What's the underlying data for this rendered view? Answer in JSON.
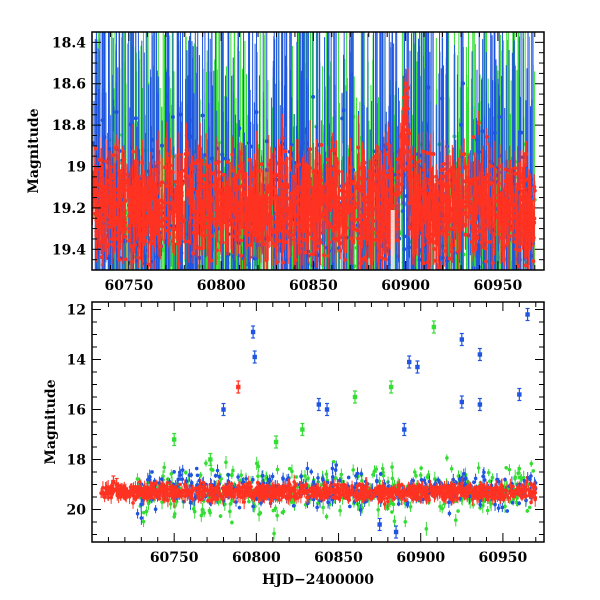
{
  "chart_data": [
    {
      "type": "scatter",
      "panel": "top",
      "title": "",
      "xlabel": "",
      "ylabel": "Magnitude",
      "xlim": [
        60730,
        60975
      ],
      "ylim": [
        19.5,
        18.35
      ],
      "y_inverted": true,
      "xticks": [
        60750,
        60800,
        60850,
        60900,
        60950
      ],
      "xtick_labels": [
        "60750",
        "60800",
        "60850",
        "60900",
        "60950"
      ],
      "yticks": [
        18.4,
        18.6,
        18.8,
        19,
        19.2,
        19.4
      ],
      "ytick_labels": [
        "18.4",
        "18.6",
        "18.8",
        "19",
        "19.2",
        "19.4"
      ],
      "grid": false,
      "series": [
        {
          "color": "#33dd33",
          "x_range": [
            60730,
            60970
          ],
          "base_mag": 19.25,
          "scatter": 0.18,
          "error_bar_span": 1.0
        },
        {
          "color": "#1f55e0",
          "x_range": [
            60730,
            60970
          ],
          "base_mag": 19.2,
          "scatter": 0.2,
          "error_bar_span": 1.2
        },
        {
          "color": "#ff3322",
          "x_range": [
            60730,
            60970
          ],
          "base_mag": 19.2,
          "scatter": 0.12,
          "error_bar_span": 0.3
        }
      ],
      "features": [
        {
          "x": 60900,
          "y_min": 18.6,
          "color": "#ff3322",
          "kind": "peak"
        },
        {
          "x": 60893,
          "y": 19.35,
          "color": "#ffffff",
          "kind": "gap"
        }
      ]
    },
    {
      "type": "scatter",
      "panel": "bottom",
      "title": "",
      "xlabel": "HJD−2400000",
      "ylabel": "Magnitude",
      "xlim": [
        60700,
        60975
      ],
      "ylim": [
        21.3,
        11.7
      ],
      "y_inverted": true,
      "xticks": [
        60750,
        60800,
        60850,
        60900,
        60950
      ],
      "xtick_labels": [
        "60750",
        "60800",
        "60850",
        "60900",
        "60950"
      ],
      "yticks": [
        12,
        14,
        16,
        18,
        20
      ],
      "ytick_labels": [
        "12",
        "14",
        "16",
        "18",
        "20"
      ],
      "grid": false,
      "series": [
        {
          "color": "#33dd33",
          "x_range": [
            60725,
            60970
          ],
          "base_mag": 19.3,
          "scatter": 0.45
        },
        {
          "color": "#1f55e0",
          "x_range": [
            60725,
            60970
          ],
          "base_mag": 19.2,
          "scatter": 0.35
        },
        {
          "color": "#ff3322",
          "x_range": [
            60705,
            60970
          ],
          "base_mag": 19.3,
          "scatter": 0.15
        }
      ],
      "outliers": [
        {
          "x": 60798,
          "y": 12.9,
          "color": "#1f55e0"
        },
        {
          "x": 60799,
          "y": 13.9,
          "color": "#1f55e0"
        },
        {
          "x": 60789,
          "y": 15.1,
          "color": "#ff3322"
        },
        {
          "x": 60780,
          "y": 16.0,
          "color": "#1f55e0"
        },
        {
          "x": 60838,
          "y": 15.8,
          "color": "#1f55e0"
        },
        {
          "x": 60843,
          "y": 16.0,
          "color": "#1f55e0"
        },
        {
          "x": 60860,
          "y": 15.5,
          "color": "#33dd33"
        },
        {
          "x": 60882,
          "y": 15.1,
          "color": "#33dd33"
        },
        {
          "x": 60893,
          "y": 14.1,
          "color": "#1f55e0"
        },
        {
          "x": 60898,
          "y": 14.3,
          "color": "#1f55e0"
        },
        {
          "x": 60908,
          "y": 12.7,
          "color": "#33dd33"
        },
        {
          "x": 60925,
          "y": 13.2,
          "color": "#1f55e0"
        },
        {
          "x": 60925,
          "y": 15.7,
          "color": "#1f55e0"
        },
        {
          "x": 60936,
          "y": 13.8,
          "color": "#1f55e0"
        },
        {
          "x": 60936,
          "y": 15.8,
          "color": "#1f55e0"
        },
        {
          "x": 60960,
          "y": 15.4,
          "color": "#1f55e0"
        },
        {
          "x": 60965,
          "y": 12.2,
          "color": "#1f55e0"
        },
        {
          "x": 60750,
          "y": 17.2,
          "color": "#33dd33"
        },
        {
          "x": 60772,
          "y": 18.0,
          "color": "#33dd33"
        },
        {
          "x": 60812,
          "y": 17.3,
          "color": "#33dd33"
        },
        {
          "x": 60828,
          "y": 16.8,
          "color": "#33dd33"
        },
        {
          "x": 60890,
          "y": 16.8,
          "color": "#1f55e0"
        },
        {
          "x": 60875,
          "y": 20.6,
          "color": "#1f55e0"
        },
        {
          "x": 60885,
          "y": 20.9,
          "color": "#1f55e0"
        },
        {
          "x": 60715,
          "y": 19.0,
          "color": "#ff3322"
        },
        {
          "x": 60713,
          "y": 18.9,
          "color": "#ff3322"
        }
      ]
    }
  ]
}
